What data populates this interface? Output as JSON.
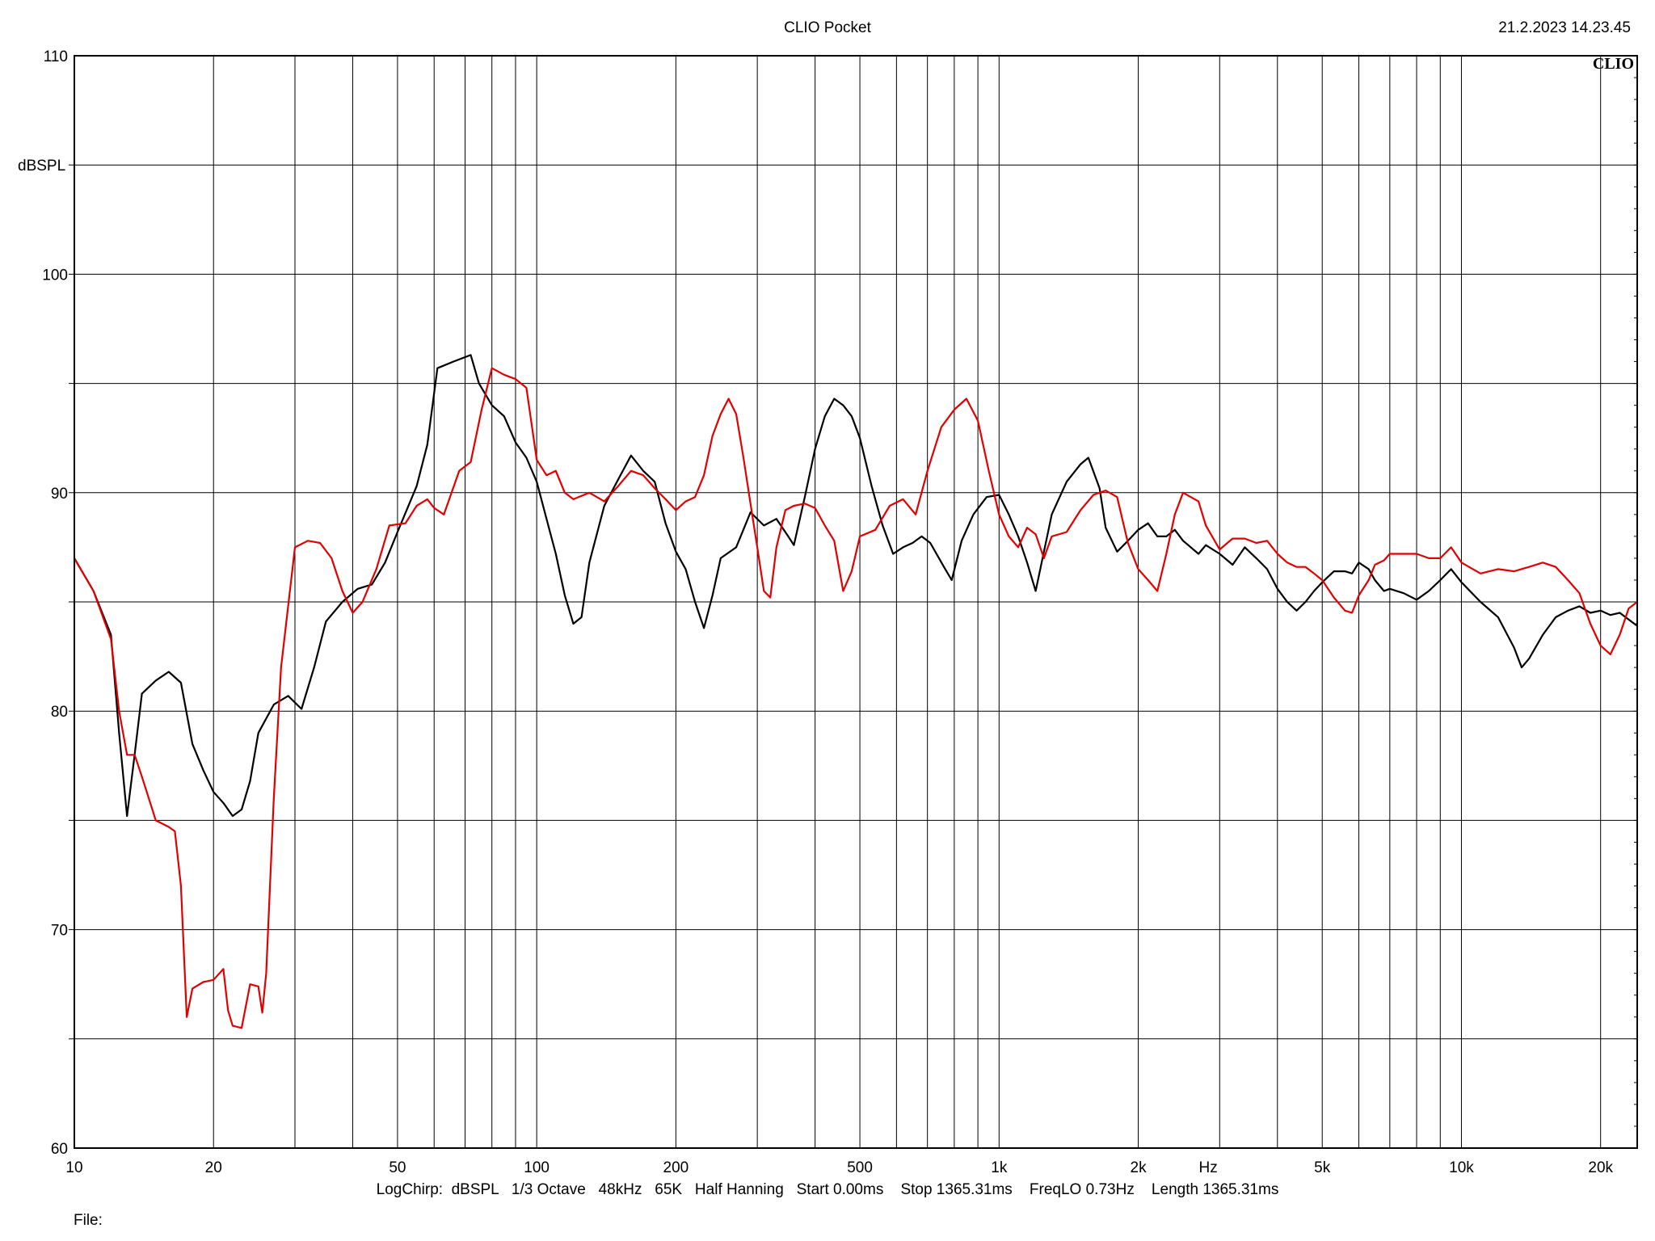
{
  "header": {
    "title": "CLIO Pocket",
    "datetime": "21.2.2023 14.23.45",
    "brand_mark": "CLIO"
  },
  "footer": {
    "info": "LogChirp:  dBSPL   1/3 Octave   48kHz   65K   Half Hanning   Start 0.00ms    Stop 1365.31ms    FreqLO 0.73Hz    Length 1365.31ms",
    "file_label": "File:"
  },
  "chart_data": {
    "type": "line",
    "x_scale": "log",
    "xlim": [
      10,
      24000
    ],
    "ylim": [
      60,
      110
    ],
    "ylabel": "dBSPL",
    "xlabel": "Hz",
    "x_ticks": [
      {
        "value": 10,
        "label": "10"
      },
      {
        "value": 20,
        "label": "20"
      },
      {
        "value": 50,
        "label": "50"
      },
      {
        "value": 100,
        "label": "100"
      },
      {
        "value": 200,
        "label": "200"
      },
      {
        "value": 500,
        "label": "500"
      },
      {
        "value": 1000,
        "label": "1k"
      },
      {
        "value": 2000,
        "label": "2k"
      },
      {
        "value": 5000,
        "label": "5k"
      },
      {
        "value": 10000,
        "label": "10k"
      },
      {
        "value": 20000,
        "label": "20k"
      }
    ],
    "y_ticks": [
      {
        "value": 60,
        "label": "60"
      },
      {
        "value": 70,
        "label": "70"
      },
      {
        "value": 80,
        "label": "80"
      },
      {
        "value": 90,
        "label": "90"
      },
      {
        "value": 100,
        "label": "100"
      },
      {
        "value": 110,
        "label": "110"
      }
    ],
    "grid": true,
    "series": [
      {
        "color": "#000000",
        "points": [
          [
            10,
            87
          ],
          [
            11,
            85.5
          ],
          [
            12,
            83.5
          ],
          [
            12.5,
            79
          ],
          [
            13,
            75.2
          ],
          [
            13.5,
            78
          ],
          [
            14,
            80.8
          ],
          [
            15,
            81.4
          ],
          [
            16,
            81.8
          ],
          [
            17,
            81.3
          ],
          [
            18,
            78.5
          ],
          [
            19,
            77.3
          ],
          [
            20,
            76.3
          ],
          [
            21,
            75.8
          ],
          [
            22,
            75.2
          ],
          [
            23,
            75.5
          ],
          [
            24,
            76.8
          ],
          [
            25,
            79
          ],
          [
            27,
            80.3
          ],
          [
            29,
            80.7
          ],
          [
            31,
            80.1
          ],
          [
            33,
            82
          ],
          [
            35,
            84.1
          ],
          [
            38,
            85
          ],
          [
            41,
            85.6
          ],
          [
            44,
            85.8
          ],
          [
            47,
            86.8
          ],
          [
            50,
            88.2
          ],
          [
            55,
            90.3
          ],
          [
            58,
            92.2
          ],
          [
            61,
            95.7
          ],
          [
            66,
            96
          ],
          [
            72,
            96.3
          ],
          [
            75,
            95
          ],
          [
            80,
            94
          ],
          [
            85,
            93.5
          ],
          [
            90,
            92.3
          ],
          [
            95,
            91.6
          ],
          [
            100,
            90.5
          ],
          [
            105,
            88.8
          ],
          [
            110,
            87.2
          ],
          [
            115,
            85.3
          ],
          [
            120,
            84
          ],
          [
            125,
            84.3
          ],
          [
            130,
            86.8
          ],
          [
            140,
            89.4
          ],
          [
            150,
            90.6
          ],
          [
            160,
            91.7
          ],
          [
            170,
            91
          ],
          [
            180,
            90.5
          ],
          [
            190,
            88.6
          ],
          [
            200,
            87.3
          ],
          [
            210,
            86.5
          ],
          [
            220,
            85
          ],
          [
            230,
            83.8
          ],
          [
            240,
            85.3
          ],
          [
            250,
            87
          ],
          [
            270,
            87.5
          ],
          [
            290,
            89.1
          ],
          [
            310,
            88.5
          ],
          [
            330,
            88.8
          ],
          [
            350,
            88
          ],
          [
            360,
            87.6
          ],
          [
            380,
            89.8
          ],
          [
            400,
            92
          ],
          [
            420,
            93.5
          ],
          [
            440,
            94.3
          ],
          [
            460,
            94
          ],
          [
            480,
            93.5
          ],
          [
            500,
            92.5
          ],
          [
            530,
            90.3
          ],
          [
            560,
            88.5
          ],
          [
            590,
            87.2
          ],
          [
            620,
            87.5
          ],
          [
            650,
            87.7
          ],
          [
            680,
            88
          ],
          [
            710,
            87.7
          ],
          [
            760,
            86.6
          ],
          [
            790,
            86
          ],
          [
            830,
            87.8
          ],
          [
            880,
            89
          ],
          [
            940,
            89.8
          ],
          [
            1000,
            89.9
          ],
          [
            1050,
            89
          ],
          [
            1100,
            88
          ],
          [
            1150,
            86.8
          ],
          [
            1200,
            85.5
          ],
          [
            1300,
            89
          ],
          [
            1400,
            90.5
          ],
          [
            1500,
            91.3
          ],
          [
            1560,
            91.6
          ],
          [
            1650,
            90.2
          ],
          [
            1700,
            88.4
          ],
          [
            1800,
            87.3
          ],
          [
            1900,
            87.8
          ],
          [
            2000,
            88.3
          ],
          [
            2100,
            88.6
          ],
          [
            2200,
            88
          ],
          [
            2300,
            88
          ],
          [
            2400,
            88.3
          ],
          [
            2500,
            87.8
          ],
          [
            2700,
            87.2
          ],
          [
            2800,
            87.6
          ],
          [
            3000,
            87.2
          ],
          [
            3200,
            86.7
          ],
          [
            3400,
            87.5
          ],
          [
            3600,
            87
          ],
          [
            3800,
            86.5
          ],
          [
            4000,
            85.6
          ],
          [
            4200,
            85
          ],
          [
            4400,
            84.6
          ],
          [
            4600,
            85
          ],
          [
            4800,
            85.5
          ],
          [
            5000,
            85.9
          ],
          [
            5300,
            86.4
          ],
          [
            5600,
            86.4
          ],
          [
            5800,
            86.3
          ],
          [
            6000,
            86.8
          ],
          [
            6300,
            86.5
          ],
          [
            6500,
            86
          ],
          [
            6800,
            85.5
          ],
          [
            7000,
            85.6
          ],
          [
            7500,
            85.4
          ],
          [
            8000,
            85.1
          ],
          [
            8500,
            85.5
          ],
          [
            9000,
            86
          ],
          [
            9500,
            86.5
          ],
          [
            10000,
            85.9
          ],
          [
            11000,
            85
          ],
          [
            12000,
            84.3
          ],
          [
            13000,
            82.9
          ],
          [
            13500,
            82
          ],
          [
            14000,
            82.4
          ],
          [
            15000,
            83.5
          ],
          [
            16000,
            84.3
          ],
          [
            17000,
            84.6
          ],
          [
            18000,
            84.8
          ],
          [
            19000,
            84.5
          ],
          [
            20000,
            84.6
          ],
          [
            21000,
            84.4
          ],
          [
            22000,
            84.5
          ],
          [
            24000,
            83.9
          ]
        ]
      },
      {
        "color": "#e00000",
        "points": [
          [
            10,
            87
          ],
          [
            11,
            85.5
          ],
          [
            12,
            83.3
          ],
          [
            12.5,
            80
          ],
          [
            13,
            78
          ],
          [
            13.5,
            78
          ],
          [
            14,
            77
          ],
          [
            15,
            75
          ],
          [
            16,
            74.7
          ],
          [
            16.5,
            74.5
          ],
          [
            17,
            72
          ],
          [
            17.5,
            66
          ],
          [
            18,
            67.3
          ],
          [
            19,
            67.6
          ],
          [
            20,
            67.7
          ],
          [
            21,
            68.2
          ],
          [
            21.5,
            66.3
          ],
          [
            22,
            65.6
          ],
          [
            23,
            65.5
          ],
          [
            24,
            67.5
          ],
          [
            25,
            67.4
          ],
          [
            25.5,
            66.2
          ],
          [
            26,
            68
          ],
          [
            27,
            76
          ],
          [
            28,
            82
          ],
          [
            30,
            87.5
          ],
          [
            32,
            87.8
          ],
          [
            34,
            87.7
          ],
          [
            36,
            87
          ],
          [
            38,
            85.5
          ],
          [
            40,
            84.5
          ],
          [
            42,
            85
          ],
          [
            45,
            86.5
          ],
          [
            48,
            88.5
          ],
          [
            52,
            88.6
          ],
          [
            55,
            89.4
          ],
          [
            58,
            89.7
          ],
          [
            60,
            89.3
          ],
          [
            63,
            89
          ],
          [
            68,
            91
          ],
          [
            72,
            91.4
          ],
          [
            76,
            93.8
          ],
          [
            80,
            95.7
          ],
          [
            85,
            95.4
          ],
          [
            90,
            95.2
          ],
          [
            95,
            94.8
          ],
          [
            100,
            91.5
          ],
          [
            105,
            90.8
          ],
          [
            110,
            91
          ],
          [
            115,
            90
          ],
          [
            120,
            89.7
          ],
          [
            130,
            90
          ],
          [
            140,
            89.6
          ],
          [
            150,
            90.3
          ],
          [
            160,
            91
          ],
          [
            170,
            90.8
          ],
          [
            180,
            90.2
          ],
          [
            190,
            89.7
          ],
          [
            200,
            89.2
          ],
          [
            210,
            89.6
          ],
          [
            220,
            89.8
          ],
          [
            230,
            90.8
          ],
          [
            240,
            92.6
          ],
          [
            250,
            93.6
          ],
          [
            260,
            94.3
          ],
          [
            270,
            93.6
          ],
          [
            280,
            91.6
          ],
          [
            290,
            89.5
          ],
          [
            300,
            87.5
          ],
          [
            310,
            85.5
          ],
          [
            320,
            85.2
          ],
          [
            330,
            87.5
          ],
          [
            345,
            89.2
          ],
          [
            360,
            89.4
          ],
          [
            380,
            89.5
          ],
          [
            400,
            89.3
          ],
          [
            420,
            88.5
          ],
          [
            440,
            87.8
          ],
          [
            460,
            85.5
          ],
          [
            480,
            86.4
          ],
          [
            500,
            88
          ],
          [
            540,
            88.3
          ],
          [
            580,
            89.4
          ],
          [
            620,
            89.7
          ],
          [
            660,
            89
          ],
          [
            700,
            91
          ],
          [
            750,
            93
          ],
          [
            800,
            93.8
          ],
          [
            850,
            94.3
          ],
          [
            900,
            93.3
          ],
          [
            950,
            91
          ],
          [
            1000,
            89
          ],
          [
            1050,
            88
          ],
          [
            1100,
            87.5
          ],
          [
            1150,
            88.4
          ],
          [
            1200,
            88.1
          ],
          [
            1250,
            87
          ],
          [
            1300,
            88
          ],
          [
            1400,
            88.2
          ],
          [
            1500,
            89.2
          ],
          [
            1600,
            89.9
          ],
          [
            1700,
            90.1
          ],
          [
            1800,
            89.8
          ],
          [
            1900,
            87.7
          ],
          [
            2000,
            86.5
          ],
          [
            2100,
            86
          ],
          [
            2200,
            85.5
          ],
          [
            2300,
            87.2
          ],
          [
            2400,
            89
          ],
          [
            2500,
            90
          ],
          [
            2700,
            89.6
          ],
          [
            2800,
            88.5
          ],
          [
            3000,
            87.4
          ],
          [
            3200,
            87.9
          ],
          [
            3400,
            87.9
          ],
          [
            3600,
            87.7
          ],
          [
            3800,
            87.8
          ],
          [
            4000,
            87.2
          ],
          [
            4200,
            86.8
          ],
          [
            4400,
            86.6
          ],
          [
            4600,
            86.6
          ],
          [
            4800,
            86.3
          ],
          [
            5000,
            86
          ],
          [
            5300,
            85.2
          ],
          [
            5600,
            84.6
          ],
          [
            5800,
            84.5
          ],
          [
            6000,
            85.3
          ],
          [
            6300,
            86
          ],
          [
            6500,
            86.7
          ],
          [
            6800,
            86.9
          ],
          [
            7000,
            87.2
          ],
          [
            7500,
            87.2
          ],
          [
            8000,
            87.2
          ],
          [
            8500,
            87
          ],
          [
            9000,
            87
          ],
          [
            9500,
            87.5
          ],
          [
            10000,
            86.8
          ],
          [
            11000,
            86.3
          ],
          [
            12000,
            86.5
          ],
          [
            13000,
            86.4
          ],
          [
            14000,
            86.6
          ],
          [
            15000,
            86.8
          ],
          [
            16000,
            86.6
          ],
          [
            17000,
            86
          ],
          [
            18000,
            85.4
          ],
          [
            19000,
            84
          ],
          [
            20000,
            83
          ],
          [
            21000,
            82.6
          ],
          [
            22000,
            83.5
          ],
          [
            23000,
            84.7
          ],
          [
            24000,
            85
          ]
        ]
      }
    ]
  }
}
